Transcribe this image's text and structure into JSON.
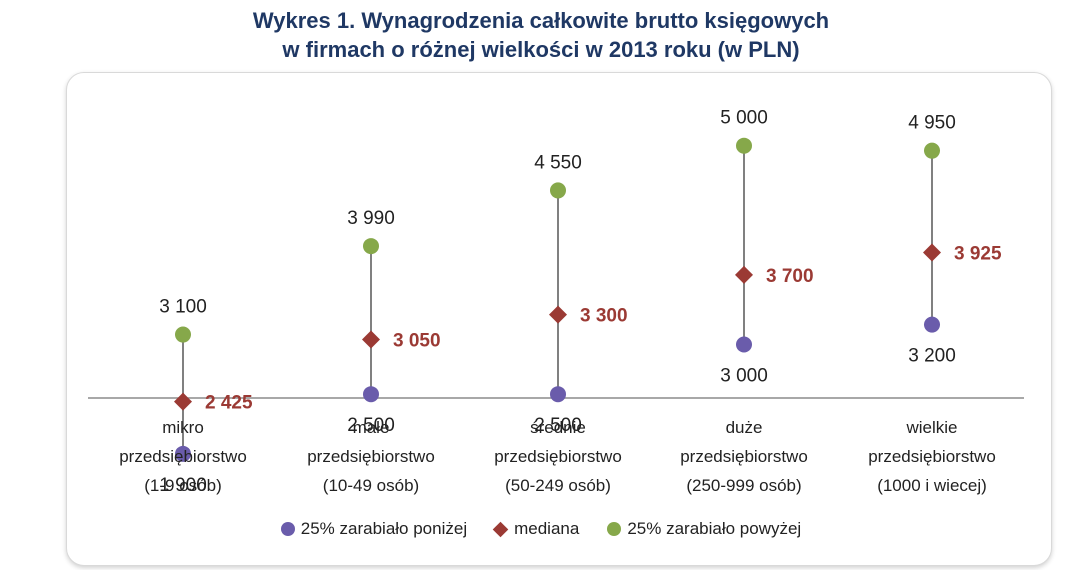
{
  "title_lines": [
    "Wykres 1. Wynagrodzenia całkowite brutto księgowych",
    "w firmach o różnej wielkości w 2013 roku (w PLN)"
  ],
  "colors": {
    "low": "#6a5cab",
    "median": "#9b3a34",
    "high": "#86a84a",
    "line": "#808080"
  },
  "chart_data": {
    "type": "scatter",
    "title": "Wykres 1. Wynagrodzenia całkowite brutto księgowych w firmach o różnej wielkości w 2013 roku (w PLN)",
    "categories": [
      [
        "mikro",
        "przedsiębiorstwo",
        "(1-9 osób)"
      ],
      [
        "małe",
        "przedsiębiorstwo",
        "(10-49 osób)"
      ],
      [
        "średnie",
        "przedsiębiorstwo",
        "(50-249 osób)"
      ],
      [
        "duże",
        "przedsiębiorstwo",
        "(250-999 osób)"
      ],
      [
        "wielkie",
        "przedsiębiorstwo",
        "(1000 i wiecej)"
      ]
    ],
    "series": [
      {
        "name": "25% zarabiało  poniżej",
        "marker": "circle",
        "values": [
          1900,
          2500,
          2500,
          3000,
          3200
        ],
        "labels": [
          "1 900",
          "2 500",
          "2 500",
          "3 000",
          "3 200"
        ]
      },
      {
        "name": "mediana",
        "marker": "diamond",
        "values": [
          2425,
          3050,
          3300,
          3700,
          3925
        ],
        "labels": [
          "2 425",
          "3 050",
          "3 300",
          "3 700",
          "3 925"
        ]
      },
      {
        "name": "25% zarabiało  powyżej",
        "marker": "circle",
        "values": [
          3100,
          3990,
          4550,
          5000,
          4950
        ],
        "labels": [
          "3 100",
          "3 990",
          "4 550",
          "5 000",
          "4 950"
        ]
      }
    ],
    "xlabel": "",
    "ylabel": "",
    "grid": false,
    "legend": "bottom"
  }
}
